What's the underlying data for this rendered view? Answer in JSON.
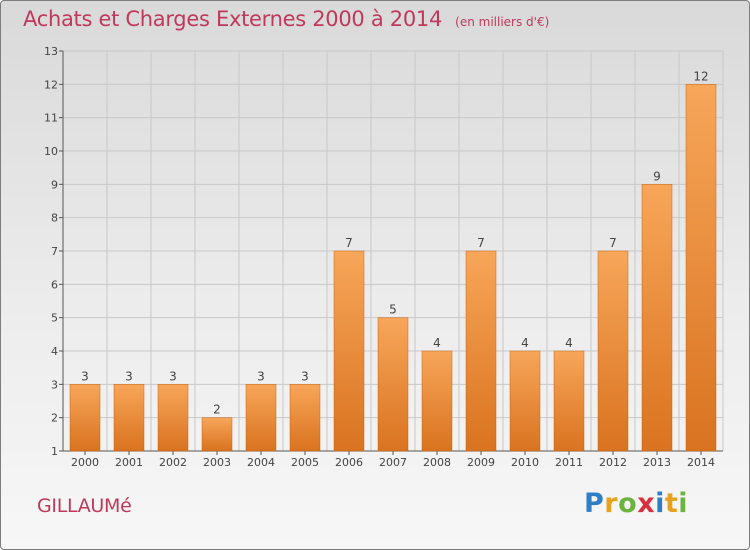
{
  "title": "Achats et Charges Externes 2000 à 2014",
  "subtitle": "(en milliers d'€)",
  "commune": "GILLAUMé",
  "logo": {
    "letters": [
      "P",
      "r",
      "o",
      "x",
      "i",
      "t",
      "i"
    ],
    "colors": [
      "#2f7fc6",
      "#e6a21d",
      "#6cb43f",
      "#d92f3f",
      "#2f7fc6",
      "#e6a21d",
      "#6cb43f"
    ]
  },
  "colors": {
    "title": "#c0395a",
    "bar_light": "#f7a65a",
    "bar_dark": "#d97320",
    "grid": "#c8c8c8"
  },
  "chart_data": {
    "type": "bar",
    "title": "Achats et Charges Externes 2000 à 2014",
    "subtitle": "(en milliers d'€)",
    "categories": [
      "2000",
      "2001",
      "2002",
      "2003",
      "2004",
      "2005",
      "2006",
      "2007",
      "2008",
      "2009",
      "2010",
      "2011",
      "2012",
      "2013",
      "2014"
    ],
    "values": [
      3,
      3,
      3,
      2,
      3,
      3,
      7,
      5,
      4,
      7,
      4,
      4,
      7,
      9,
      12
    ],
    "ylim": [
      1,
      13
    ],
    "yticks": [
      1,
      2,
      3,
      4,
      5,
      6,
      7,
      8,
      9,
      10,
      11,
      12,
      13
    ],
    "grid": true,
    "xlabel": "",
    "ylabel": ""
  }
}
